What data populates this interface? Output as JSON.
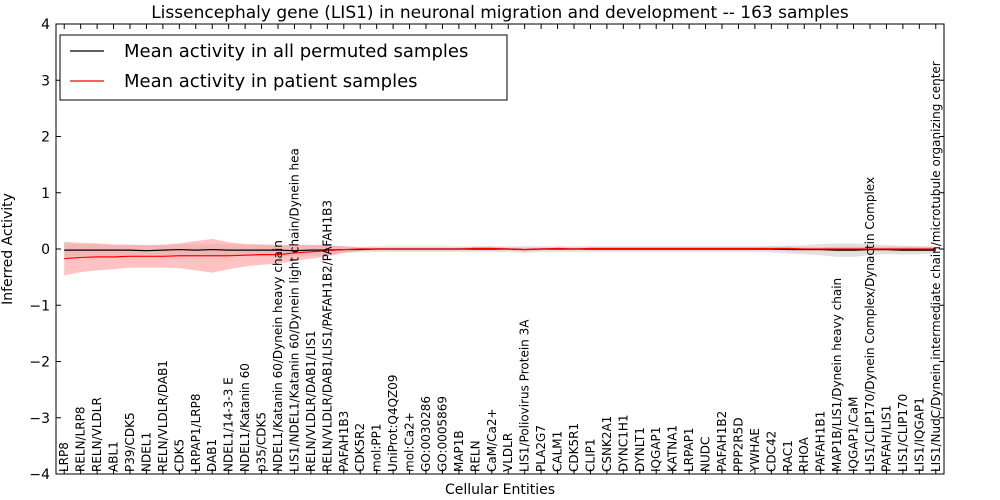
{
  "chart_data": {
    "type": "line",
    "title": "Lissencephaly gene (LIS1) in neuronal migration and development -- 163 samples",
    "xlabel": "Cellular Entities",
    "ylabel": "Inferred Activity",
    "ylim": [
      -4,
      4
    ],
    "yticks": [
      "−4",
      "−3",
      "−2",
      "−1",
      "0",
      "1",
      "2",
      "3",
      "4"
    ],
    "legend_position": "top-left",
    "categories": [
      "LRP8",
      "RELN/LRP8",
      "RELN/VLDLR",
      "ABL1",
      "P39/CDK5",
      "NDEL1",
      "RELN/VLDLR/DAB1",
      "CDK5",
      "LRPAP1/LRP8",
      "DAB1",
      "NDEL1/14-3-3 E",
      "NDEL1/Katanin 60",
      "p35/CDK5",
      "NDEL1/Katanin 60/Dynein heavy chain",
      "LIS1/NDEL1/Katanin 60/Dynein light chain/Dynein hea",
      "RELN/VLDLR/DAB1/LIS1",
      "RELN/VLDLR/DAB1/LIS1/PAFAH1B2/PAFAH1B3",
      "PAFAH1B3",
      "CDK5R2",
      "mol:PP1",
      "UniProt:Q4QZ09",
      "mol:Ca2+",
      "GO:0030286",
      "GO:0005869",
      "MAP1B",
      "RELN",
      "CaM/Ca2+",
      "VLDLR",
      "LIS1/Poliovirus Protein 3A",
      "PLA2G7",
      "CALM1",
      "CDK5R1",
      "CLIP1",
      "CSNK2A1",
      "DYNC1H1",
      "DYNLT1",
      "IQGAP1",
      "KATNA1",
      "LRPAP1",
      "NUDC",
      "PAFAH1B2",
      "PPP2R5D",
      "YWHAE",
      "CDC42",
      "RAC1",
      "RHOA",
      "PAFAH1B1",
      "MAP1B/LIS1/Dynein heavy chain",
      "IQGAP1/CaM",
      "LIS1/CLIP170/Dynein Complex/Dynactin Complex",
      "PAFAH/LIS1",
      "LIS1/CLIP170",
      "LIS1/IQGAP1",
      "LIS1/NudC/Dynein intermediate chain/microtubule organizing center"
    ],
    "series": [
      {
        "name": "Mean activity in all permuted samples",
        "color": "#000000",
        "band_color": "#bdbdbd",
        "values": [
          -0.02,
          -0.02,
          -0.02,
          -0.02,
          -0.02,
          -0.03,
          -0.02,
          -0.01,
          -0.02,
          -0.01,
          -0.02,
          -0.02,
          -0.02,
          -0.02,
          -0.03,
          -0.02,
          -0.02,
          -0.01,
          -0.01,
          0,
          0,
          0,
          0,
          0,
          0,
          0,
          0,
          0,
          -0.01,
          0,
          0,
          0,
          0,
          0,
          0,
          0,
          0,
          0,
          0,
          0,
          0,
          0,
          0,
          0,
          -0.01,
          -0.01,
          -0.01,
          -0.02,
          -0.02,
          -0.01,
          -0.01,
          -0.02,
          -0.02,
          -0.02
        ],
        "band": [
          0.12,
          0.1,
          0.1,
          0.1,
          0.1,
          0.1,
          0.1,
          0.1,
          0.1,
          0.1,
          0.1,
          0.1,
          0.1,
          0.1,
          0.1,
          0.1,
          0.08,
          0.06,
          0.05,
          0.05,
          0.05,
          0.05,
          0.05,
          0.05,
          0.05,
          0.05,
          0.05,
          0.05,
          0.06,
          0.05,
          0.05,
          0.05,
          0.05,
          0.05,
          0.05,
          0.05,
          0.05,
          0.05,
          0.05,
          0.05,
          0.05,
          0.05,
          0.05,
          0.06,
          0.07,
          0.08,
          0.1,
          0.12,
          0.12,
          0.1,
          0.08,
          0.08,
          0.07,
          0.06
        ]
      },
      {
        "name": "Mean activity in patient samples",
        "color": "#ff0000",
        "band_color": "#ff9999",
        "values": [
          -0.17,
          -0.15,
          -0.14,
          -0.14,
          -0.13,
          -0.13,
          -0.13,
          -0.12,
          -0.12,
          -0.12,
          -0.12,
          -0.11,
          -0.1,
          -0.1,
          -0.07,
          -0.05,
          -0.03,
          -0.01,
          0,
          0,
          0,
          0,
          0,
          0,
          0,
          0.01,
          0.01,
          0,
          -0.01,
          0,
          0.01,
          0,
          0.01,
          0.01,
          0.01,
          0.01,
          0.01,
          0.01,
          0.01,
          0.01,
          0.01,
          0.01,
          0.01,
          0.01,
          0.01,
          0,
          0,
          0,
          0,
          0,
          0,
          0,
          0,
          0
        ],
        "band": [
          0.3,
          0.26,
          0.24,
          0.22,
          0.2,
          0.2,
          0.2,
          0.22,
          0.26,
          0.3,
          0.24,
          0.2,
          0.18,
          0.16,
          0.14,
          0.12,
          0.1,
          0.06,
          0.03,
          0.02,
          0.02,
          0.02,
          0.02,
          0.02,
          0.02,
          0.03,
          0.03,
          0.02,
          0.03,
          0.02,
          0.02,
          0.02,
          0.02,
          0.02,
          0.02,
          0.02,
          0.02,
          0.02,
          0.02,
          0.02,
          0.02,
          0.02,
          0.02,
          0.02,
          0.03,
          0.03,
          0.03,
          0.04,
          0.04,
          0.04,
          0.04,
          0.04,
          0.04,
          0.04
        ]
      }
    ]
  }
}
